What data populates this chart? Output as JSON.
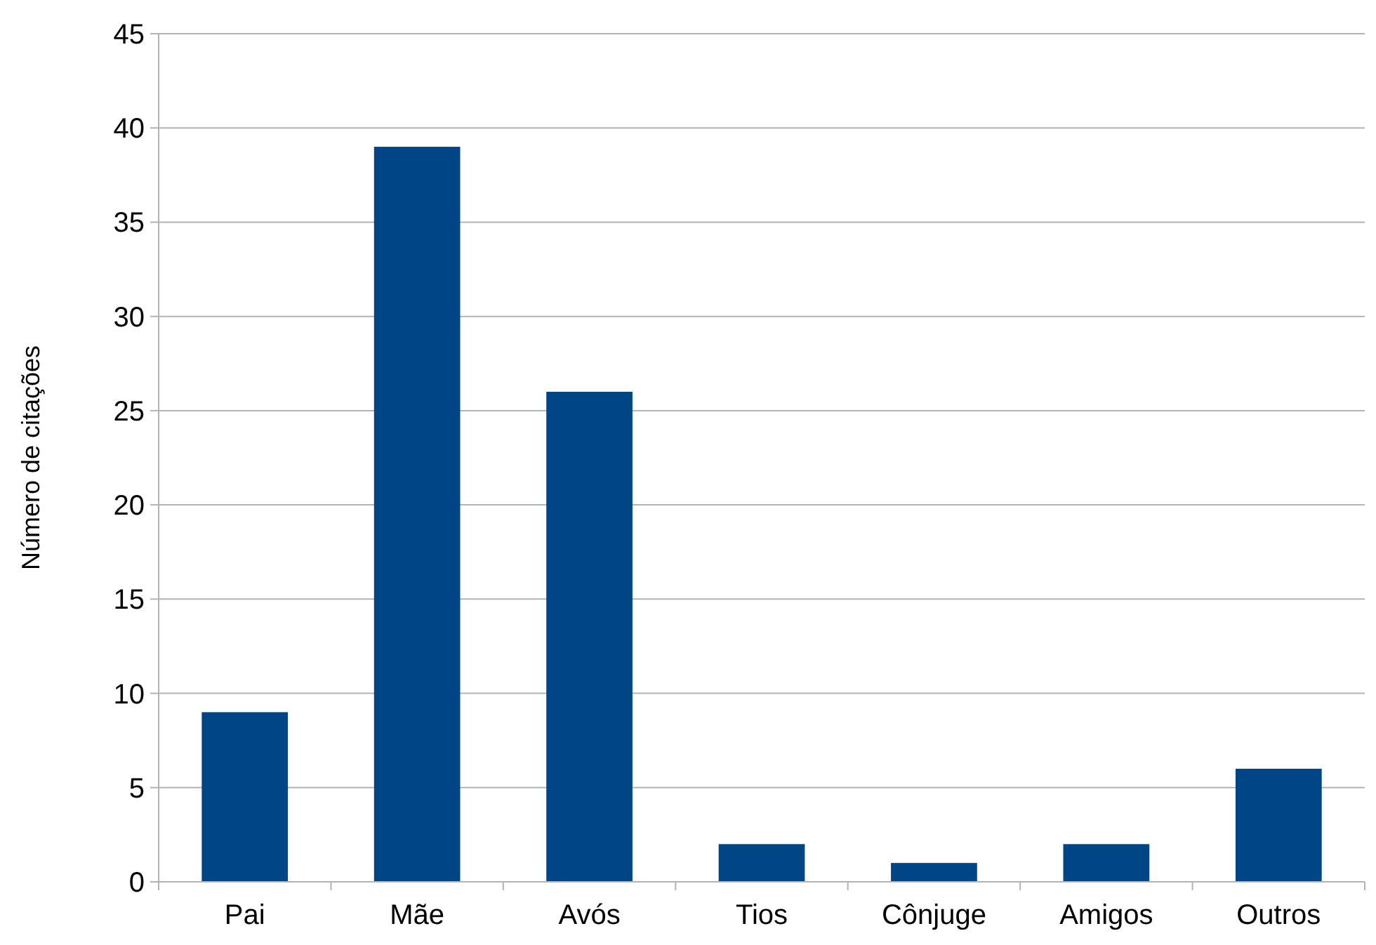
{
  "chart_data": {
    "type": "bar",
    "ylabel": "Número de citações",
    "categories": [
      "Pai",
      "Mãe",
      "Avós",
      "Tios",
      "Cônjuge",
      "Amigos",
      "Outros"
    ],
    "values": [
      9,
      39,
      26,
      2,
      1,
      2,
      6
    ],
    "color": "#004586",
    "ylim": [
      0,
      45
    ],
    "yticks": [
      0,
      5,
      10,
      15,
      20,
      25,
      30,
      35,
      40,
      45
    ],
    "grid": "y"
  }
}
